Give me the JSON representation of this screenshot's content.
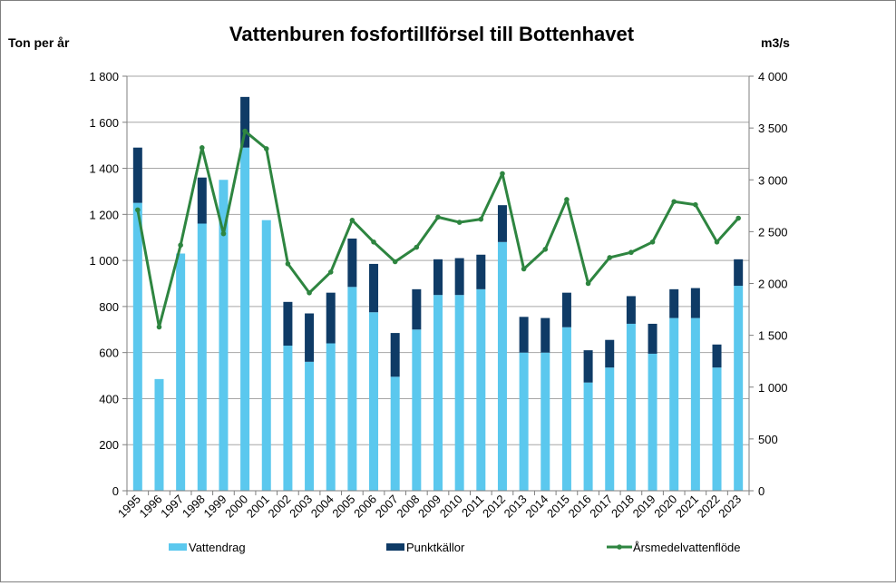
{
  "chart_data": {
    "type": "bar",
    "title": "Vattenburen fosfortillförsel till Bottenhavet",
    "ylabel_left": "Ton per år",
    "ylabel_right": "m3/s",
    "ylim_left": [
      0,
      1800
    ],
    "ylim_right": [
      0,
      4000
    ],
    "yticks_left": [
      "0",
      "200",
      "400",
      "600",
      "800",
      "1 000",
      "1 200",
      "1 400",
      "1 600",
      "1 800"
    ],
    "yticks_right": [
      "0",
      "500",
      "1 000",
      "1 500",
      "2 000",
      "2 500",
      "3 000",
      "3 500",
      "4 000"
    ],
    "grid": true,
    "legend_position": "bottom",
    "categories": [
      "1995",
      "1996",
      "1997",
      "1998",
      "1999",
      "2000",
      "2001",
      "2002",
      "2003",
      "2004",
      "2005",
      "2006",
      "2007",
      "2008",
      "2009",
      "2010",
      "2011",
      "2012",
      "2013",
      "2014",
      "2015",
      "2016",
      "2017",
      "2018",
      "2019",
      "2020",
      "2021",
      "2022",
      "2023"
    ],
    "series": [
      {
        "name": "Vattendrag",
        "kind": "bar-stacked",
        "axis": "left",
        "color": "#5bc8ee",
        "values": [
          1250,
          485,
          1030,
          1160,
          1350,
          1490,
          1175,
          630,
          560,
          640,
          885,
          775,
          495,
          700,
          850,
          850,
          875,
          1080,
          600,
          600,
          710,
          470,
          535,
          725,
          595,
          750,
          750,
          535,
          890
        ]
      },
      {
        "name": "Punktkällor",
        "kind": "bar-stacked",
        "axis": "left",
        "color": "#0f3b66",
        "values": [
          240,
          0,
          0,
          200,
          0,
          220,
          0,
          190,
          210,
          220,
          210,
          210,
          190,
          175,
          155,
          160,
          150,
          160,
          155,
          150,
          150,
          140,
          120,
          120,
          130,
          125,
          130,
          100,
          115
        ]
      },
      {
        "name": "Årsmedelvattenflöde",
        "kind": "line",
        "axis": "right",
        "color": "#2e8540",
        "values": [
          2710,
          1580,
          2370,
          3310,
          2480,
          3470,
          3300,
          2190,
          1910,
          2110,
          2610,
          2400,
          2210,
          2350,
          2640,
          2590,
          2620,
          3060,
          2140,
          2330,
          2810,
          2000,
          2250,
          2300,
          2400,
          2790,
          2760,
          2400,
          2630
        ]
      }
    ]
  }
}
